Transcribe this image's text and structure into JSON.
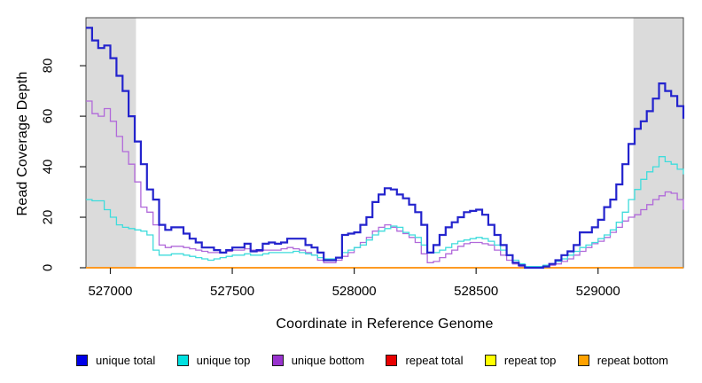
{
  "chart_data": {
    "type": "line",
    "title": "",
    "xlabel": "Coordinate in Reference Genome",
    "ylabel": "Read Coverage Depth",
    "xlim": [
      526900,
      529350
    ],
    "ylim": [
      0,
      99
    ],
    "x_ticks": [
      "527000",
      "527500",
      "528000",
      "528500",
      "529000"
    ],
    "x_tick_values": [
      527000,
      527500,
      528000,
      528500,
      529000
    ],
    "y_ticks": [
      "0",
      "20",
      "40",
      "60",
      "80"
    ],
    "y_tick_values": [
      0,
      20,
      40,
      60,
      80
    ],
    "grid": false,
    "step_interpolation": "step-after",
    "shaded_regions": [
      {
        "x0": 526900,
        "x1": 527105,
        "color": "#DBDBDB",
        "meaning": "repeat region left"
      },
      {
        "x0": 529145,
        "x1": 529350,
        "color": "#DBDBDB",
        "meaning": "repeat region right"
      }
    ],
    "x": [
      526900,
      526925,
      526950,
      526975,
      527000,
      527025,
      527050,
      527075,
      527100,
      527125,
      527150,
      527175,
      527200,
      527225,
      527250,
      527275,
      527300,
      527325,
      527350,
      527375,
      527400,
      527425,
      527450,
      527475,
      527500,
      527525,
      527550,
      527575,
      527600,
      527625,
      527650,
      527675,
      527700,
      527725,
      527750,
      527775,
      527800,
      527825,
      527850,
      527875,
      527900,
      527925,
      527950,
      527975,
      528000,
      528025,
      528050,
      528075,
      528100,
      528125,
      528150,
      528175,
      528200,
      528225,
      528250,
      528275,
      528300,
      528325,
      528350,
      528375,
      528400,
      528425,
      528450,
      528475,
      528500,
      528525,
      528550,
      528575,
      528600,
      528625,
      528650,
      528675,
      528700,
      528725,
      528750,
      528775,
      528800,
      528825,
      528850,
      528875,
      528900,
      528925,
      528950,
      528975,
      529000,
      529025,
      529050,
      529075,
      529100,
      529125,
      529150,
      529175,
      529200,
      529225,
      529250,
      529275,
      529300,
      529325,
      529350
    ],
    "series": [
      {
        "name": "repeat total",
        "color": "#E00000",
        "width": 1.3,
        "constant": 0
      },
      {
        "name": "repeat top",
        "color": "#F2F200",
        "width": 1.3,
        "constant": 0
      },
      {
        "name": "repeat bottom",
        "color": "#FF9414",
        "width": 1.7,
        "constant": 0
      },
      {
        "name": "unique bottom",
        "color": "#B169DA",
        "width": 1.3,
        "values": [
          66,
          61,
          60,
          63,
          58,
          52,
          46,
          41,
          34,
          24,
          22,
          17,
          9,
          8,
          8.5,
          8.5,
          8,
          7.5,
          7,
          6.5,
          6,
          6,
          6,
          6.5,
          7,
          7,
          7.5,
          7,
          6.5,
          7,
          7,
          7,
          7.5,
          8,
          7.5,
          7,
          6,
          5,
          3,
          2,
          2,
          3,
          4.5,
          6,
          8,
          10,
          12,
          14.5,
          16,
          17,
          16,
          14.5,
          13.5,
          12,
          10,
          5.5,
          2,
          2.5,
          4,
          5.5,
          7,
          8.5,
          9.5,
          10,
          10,
          9.5,
          9,
          7,
          5,
          3,
          1.5,
          0.5,
          0.5,
          0.5,
          0.5,
          0.5,
          1,
          1.5,
          2.5,
          3.5,
          5,
          6.5,
          8,
          9.5,
          10.5,
          12,
          14,
          16,
          18.5,
          20,
          21,
          23,
          25,
          27,
          28.5,
          30,
          29.5,
          27,
          23
        ]
      },
      {
        "name": "unique top",
        "color": "#3FDCDC",
        "width": 1.3,
        "values": [
          27,
          26.5,
          26.5,
          23,
          20,
          17,
          16,
          15.5,
          15,
          14.5,
          13,
          7,
          5,
          5,
          5.5,
          5.5,
          5,
          4.5,
          4,
          3.5,
          3,
          3.5,
          4,
          4.5,
          5,
          5,
          5.5,
          5,
          5,
          5.5,
          6,
          6,
          6,
          6,
          6.5,
          6,
          5.5,
          5,
          4,
          3.5,
          3.5,
          4,
          6,
          7,
          8,
          9,
          11,
          13,
          14.5,
          15.5,
          16.5,
          16,
          14,
          13,
          12,
          9,
          6,
          6,
          7,
          8,
          9.5,
          10.5,
          11,
          11.5,
          12,
          11.5,
          10.5,
          9,
          7,
          5,
          3,
          1.5,
          0.5,
          0.5,
          0.5,
          1,
          1.5,
          2.5,
          3.5,
          5,
          6.5,
          8,
          9,
          10,
          11.5,
          13,
          15,
          18,
          22,
          27,
          31,
          35,
          38,
          40,
          44,
          42,
          41,
          39,
          37
        ]
      },
      {
        "name": "unique total",
        "color": "#2323CD",
        "width": 2.2,
        "values": [
          95,
          90,
          87,
          88,
          83,
          76,
          70,
          60,
          50,
          41,
          31,
          27,
          17,
          15,
          16,
          16,
          13.5,
          11.5,
          10,
          8,
          8,
          7,
          6,
          7,
          8,
          8,
          9.5,
          6.5,
          7,
          9.5,
          10,
          9.5,
          10,
          11.5,
          11.5,
          11.5,
          9,
          8,
          6,
          3,
          3,
          4,
          13,
          13.5,
          14,
          17,
          20,
          26,
          29,
          31.5,
          31,
          29,
          27.5,
          25,
          22,
          17,
          6,
          9,
          13,
          16,
          18,
          20,
          22,
          22.5,
          23,
          21,
          17,
          13,
          9,
          5,
          2,
          1,
          0,
          0,
          0,
          0.5,
          1.5,
          3,
          5,
          6.5,
          9,
          14,
          14,
          16,
          19,
          24,
          27,
          33,
          41,
          49,
          55,
          58,
          62,
          67,
          73,
          70,
          68,
          64,
          59
        ]
      }
    ],
    "legend": {
      "position": "bottom",
      "items": [
        {
          "label": "unique total",
          "swatch": "#0000E8"
        },
        {
          "label": "unique top",
          "swatch": "#00E0E0"
        },
        {
          "label": "unique bottom",
          "swatch": "#9933CE"
        },
        {
          "label": "repeat total",
          "swatch": "#E80000"
        },
        {
          "label": "repeat top",
          "swatch": "#FFFF00"
        },
        {
          "label": "repeat bottom",
          "swatch": "#FFA200"
        }
      ]
    },
    "colors": {
      "plot_background": "#FFFFFF",
      "shaded_region": "#DBDBDB",
      "box_border": "#474747",
      "tick": "#222222",
      "text": "#000000"
    }
  }
}
